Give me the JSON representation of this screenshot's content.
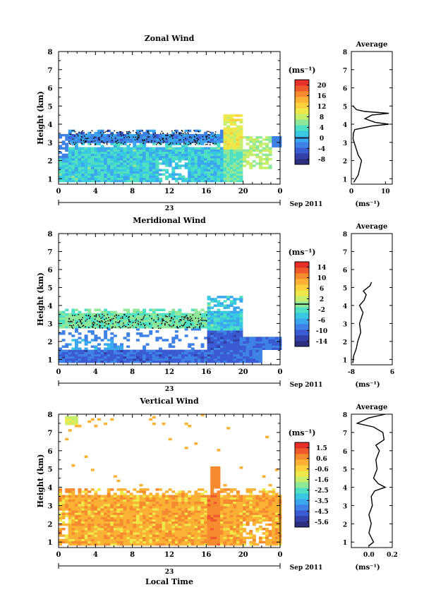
{
  "chart_data": [
    {
      "type": "heatmap",
      "title": "Zonal Wind",
      "xlabel": "",
      "ylabel": "Height (km)",
      "xlim": [
        0,
        24
      ],
      "ylim": [
        0.7,
        8
      ],
      "x_ticks": [
        "0",
        "4",
        "8",
        "12",
        "16",
        "20",
        "0"
      ],
      "y_ticks": [
        "1",
        "2",
        "3",
        "4",
        "5",
        "6",
        "7",
        "8"
      ],
      "date_label": "23",
      "month_label": "Sep 2011",
      "colorbar": {
        "unit": "(ms⁻¹)",
        "labels": [
          "20",
          "16",
          "12",
          "8",
          "4",
          "0",
          "-4",
          "-8"
        ],
        "range": [
          -10,
          22
        ],
        "marker": 0
      },
      "average_panel": {
        "title": "Average",
        "x_ticks": [
          "0",
          "10"
        ],
        "xlim": [
          0,
          12
        ],
        "xlabel": "(ms⁻¹)"
      }
    },
    {
      "type": "heatmap",
      "title": "Meridional Wind",
      "xlabel": "",
      "ylabel": "Height (km)",
      "xlim": [
        0,
        24
      ],
      "ylim": [
        0.7,
        8
      ],
      "x_ticks": [
        "0",
        "4",
        "8",
        "12",
        "16",
        "20",
        "0"
      ],
      "y_ticks": [
        "1",
        "2",
        "3",
        "4",
        "5",
        "6",
        "7",
        "8"
      ],
      "date_label": "23",
      "month_label": "Sep 2011",
      "colorbar": {
        "unit": "(ms⁻¹)",
        "labels": [
          "14",
          "10",
          "6",
          "2",
          "-2",
          "-6",
          "-10",
          "-14"
        ],
        "range": [
          -16,
          16
        ],
        "marker": 0
      },
      "average_panel": {
        "title": "Average",
        "x_ticks": [
          "-8",
          "6"
        ],
        "xlim": [
          -8,
          6
        ],
        "xlabel": "(ms⁻¹)"
      }
    },
    {
      "type": "heatmap",
      "title": "Vertical Wind",
      "xlabel": "Local Time",
      "ylabel": "Height (km)",
      "xlim": [
        0,
        24
      ],
      "ylim": [
        0.7,
        8
      ],
      "x_ticks": [
        "0",
        "4",
        "8",
        "12",
        "16",
        "20",
        "0"
      ],
      "y_ticks": [
        "1",
        "2",
        "3",
        "4",
        "5",
        "6",
        "7",
        "8"
      ],
      "date_label": "23",
      "month_label": "Sep 2011",
      "colorbar": {
        "unit": "(ms⁻¹)",
        "labels": [
          "1.5",
          "0.6",
          "-0.6",
          "-1.6",
          "-2.5",
          "-3.5",
          "-4.5",
          "-5.6"
        ],
        "range": [
          -6,
          2
        ],
        "marker": null
      },
      "average_panel": {
        "title": "Average",
        "x_ticks": [
          "0.0",
          "0.2"
        ],
        "xlim": [
          -0.15,
          0.2
        ],
        "xlabel": "(ms⁻¹)"
      }
    }
  ]
}
